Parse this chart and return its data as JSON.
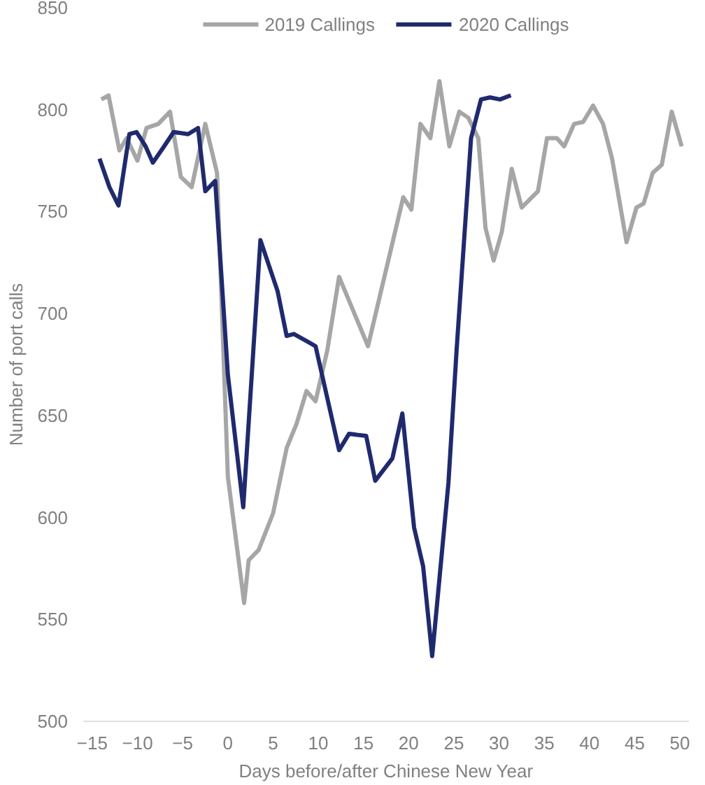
{
  "chart_data": {
    "type": "line",
    "xlabel": "Days before/after Chinese New Year",
    "ylabel": "Number of port calls",
    "xlim": [
      -16,
      51
    ],
    "xticks": [
      -15,
      -10,
      -5,
      0,
      5,
      10,
      15,
      20,
      25,
      30,
      35,
      40,
      45,
      50
    ],
    "ylim": [
      500,
      850
    ],
    "yticks": [
      500,
      550,
      600,
      650,
      700,
      750,
      800,
      850
    ],
    "grid": false,
    "legend": "top",
    "line_style": "solid",
    "marker": "none",
    "series": [
      {
        "name": "2019 Callings",
        "color": "#a6a6a6",
        "x": [
          -14,
          -13.2,
          -12,
          -11.2,
          -10,
          -9,
          -7.7,
          -6.4,
          -5.2,
          -4,
          -2.5,
          -1.2,
          0,
          1.8,
          2.3,
          3.4,
          5,
          6.5,
          7.6,
          8.7,
          9.7,
          11,
          12.3,
          15.5,
          19.4,
          20.3,
          21.3,
          22.4,
          23.4,
          24.5,
          25.6,
          26.6,
          27.7,
          28.5,
          29.4,
          30.3,
          31.4,
          32.5,
          34.3,
          35.3,
          36.4,
          37.2,
          38.3,
          39.3,
          40.4,
          41.5,
          42.5,
          44.1,
          45.2,
          46,
          47,
          48,
          49.1,
          50.2
        ],
        "values": [
          805,
          807,
          780,
          786,
          775,
          791,
          793,
          799,
          767,
          762,
          793,
          769,
          620,
          558,
          579,
          584,
          602,
          634,
          646,
          662,
          657,
          682,
          718,
          684,
          757,
          751,
          793,
          786,
          814,
          782,
          799,
          796,
          786,
          742,
          726,
          740,
          771,
          752,
          760,
          786,
          786,
          782,
          793,
          794,
          802,
          793,
          776,
          735,
          752,
          754,
          769,
          773,
          799,
          782
        ]
      },
      {
        "name": "2020 Callings",
        "color": "#1f2a6e",
        "x": [
          -14.2,
          -13.1,
          -12.1,
          -10.9,
          -10.1,
          -9.1,
          -8.3,
          -7.2,
          -6,
          -4.4,
          -3.3,
          -2.5,
          -1.4,
          0,
          1.7,
          3.6,
          5.5,
          6.5,
          7.3,
          8.9,
          9.7,
          12.3,
          13.4,
          15.3,
          16.3,
          18.2,
          19.3,
          20.6,
          21.6,
          22.6,
          24.4,
          25.3,
          26.9,
          28,
          29,
          30.1,
          31.3
        ],
        "values": [
          776,
          762,
          753,
          788,
          789,
          782,
          774,
          781,
          789,
          788,
          791,
          760,
          765,
          670,
          605,
          736,
          711,
          689,
          690,
          686,
          684,
          633,
          641,
          640,
          618,
          629,
          651,
          595,
          576,
          532,
          617,
          682,
          786,
          805,
          806,
          805,
          807
        ]
      }
    ]
  }
}
